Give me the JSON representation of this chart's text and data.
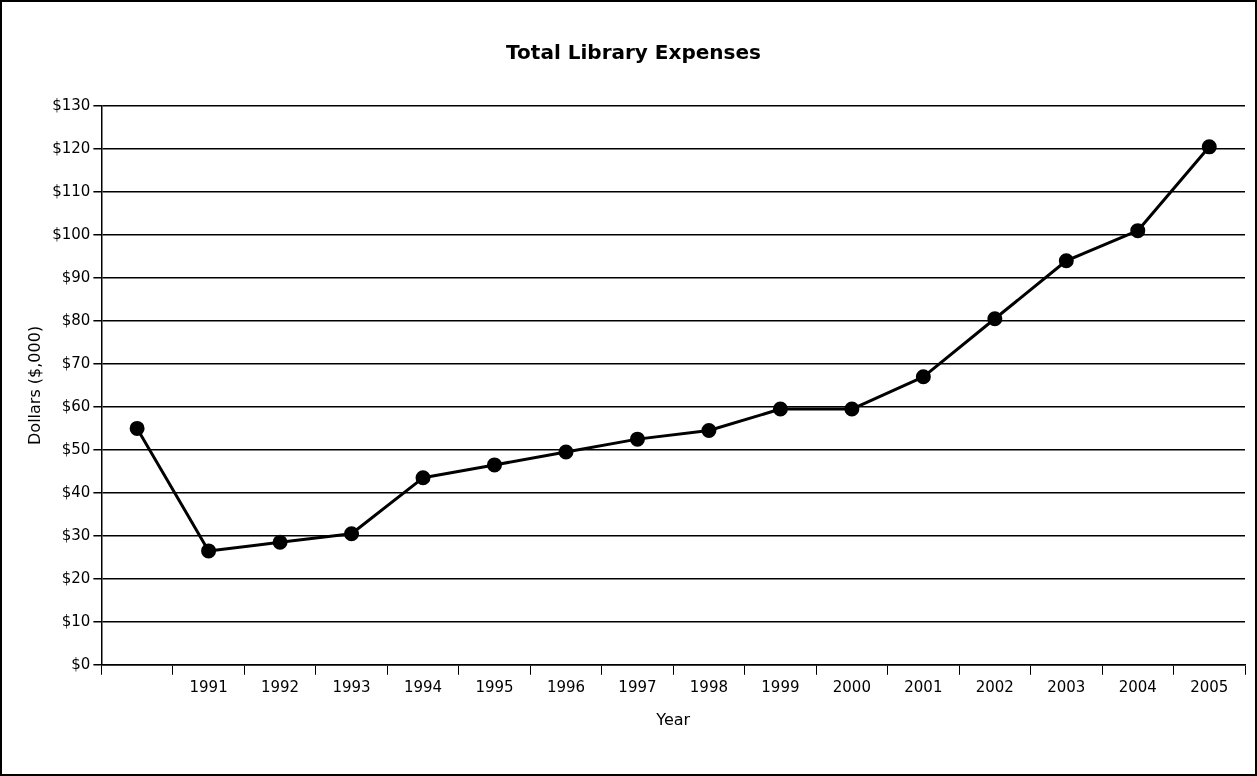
{
  "chart_data": {
    "type": "line",
    "title": "Total Library Expenses",
    "xlabel": "Year",
    "ylabel": "Dollars ($,000)",
    "categories": [
      null,
      "1991",
      "1992",
      "1993",
      "1994",
      "1995",
      "1996",
      "1997",
      "1998",
      "1999",
      "2000",
      "2001",
      "2002",
      "2003",
      "2004",
      "2005"
    ],
    "series": [
      {
        "color": "#000000",
        "values": [
          55,
          26.5,
          28.5,
          30.5,
          43.5,
          46.5,
          49.5,
          52.5,
          54.5,
          59.5,
          59.5,
          67,
          80.5,
          94,
          101,
          120.5
        ]
      }
    ],
    "ylim": [
      0,
      130
    ],
    "yticks": [
      {
        "value": 0,
        "label": "$0"
      },
      {
        "value": 10,
        "label": "$10"
      },
      {
        "value": 20,
        "label": "$20"
      },
      {
        "value": 30,
        "label": "$30"
      },
      {
        "value": 40,
        "label": "$40"
      },
      {
        "value": 50,
        "label": "$50"
      },
      {
        "value": 60,
        "label": "$60"
      },
      {
        "value": 70,
        "label": "$70"
      },
      {
        "value": 80,
        "label": "$80"
      },
      {
        "value": 90,
        "label": "$90"
      },
      {
        "value": 100,
        "label": "$100"
      },
      {
        "value": 110,
        "label": "$110"
      },
      {
        "value": 120,
        "label": "$120"
      },
      {
        "value": 130,
        "label": "$130"
      }
    ],
    "grid": "y",
    "legend": false,
    "marker": "circle",
    "line_style": "solid"
  }
}
